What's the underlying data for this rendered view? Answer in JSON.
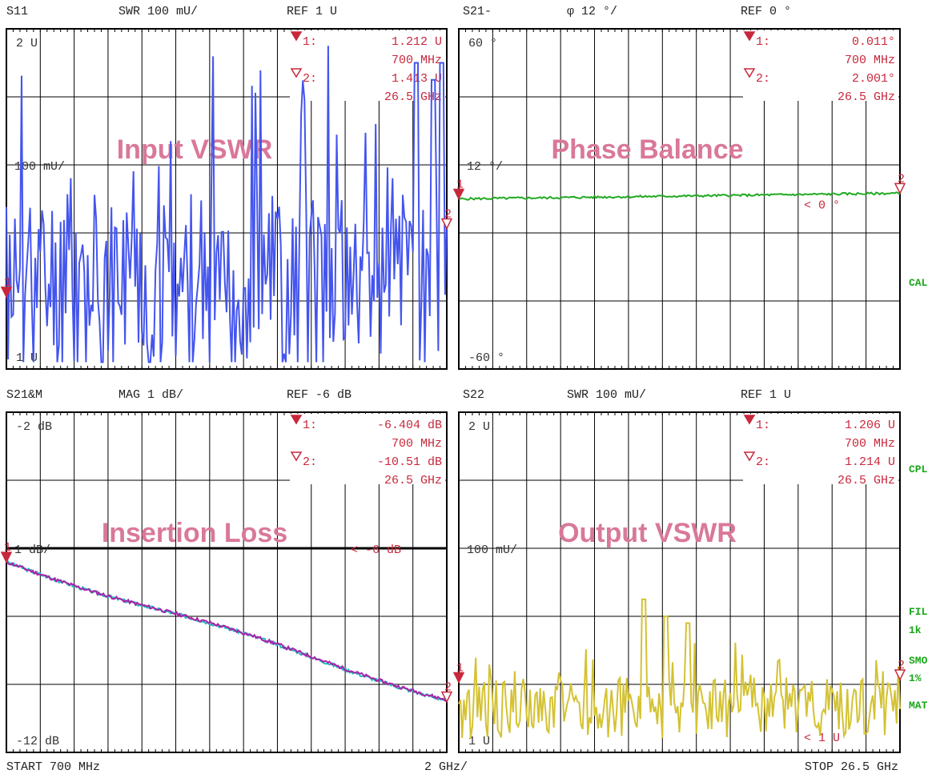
{
  "footer": {
    "start": "START  700 MHz",
    "div": "2 GHz/",
    "stop": "STOP 26.5 GHz"
  },
  "side_labels": [
    "CAL",
    "CPL",
    "FIL",
    "1k",
    "SMO",
    "1%",
    "MAT"
  ],
  "colors": {
    "grid": "#000000",
    "marker": "#c8283c",
    "title": "#d9789a",
    "s11": "#4455ee",
    "phase": "#22aa22",
    "il_a": "#22bbbb",
    "il_b": "#aa22aa",
    "s22": "#d4c232",
    "side": "#19a619"
  },
  "chart_data": [
    {
      "type": "line",
      "header": {
        "param": "S11",
        "format": "SWR 100 mU/",
        "ref": "REF 1 U"
      },
      "title": "Input VSWR",
      "ylabels": {
        "top": "2 U",
        "ref": "100 mU/",
        "bottom": "1 U"
      },
      "ylim": [
        1,
        2
      ],
      "ref": 1.0,
      "x_range_GHz": [
        0.7,
        26.5
      ],
      "markers": [
        {
          "id": "1:",
          "value": "1.212  U",
          "freq": "700 MHz",
          "x": 0.7,
          "y": 1.212
        },
        {
          "id": "2:",
          "value": "1.413  U",
          "freq": "26.5 GHz",
          "x": 26.5,
          "y": 1.413
        }
      ],
      "limit_text": "",
      "series": [
        {
          "color": "#4455ee",
          "seed": 11,
          "base": 1.25,
          "amp": 0.28,
          "trend": 0.0,
          "spikes": [
            [
              0.93,
              1.9
            ],
            [
              0.97,
              1.85
            ],
            [
              0.99,
              1.9
            ]
          ]
        }
      ]
    },
    {
      "type": "line",
      "header": {
        "param": "S21-",
        "format": "φ   12 °/",
        "ref": "REF 0 °"
      },
      "title": "Phase Balance",
      "ylabels": {
        "top": "60 °",
        "ref": "12 °/",
        "bottom": "-60 °"
      },
      "ylim": [
        -60,
        60
      ],
      "ref": 0,
      "x_range_GHz": [
        0.7,
        26.5
      ],
      "markers": [
        {
          "id": "1:",
          "value": "0.011°",
          "freq": "700 MHz",
          "x": 0.7,
          "y": 0.011
        },
        {
          "id": "2:",
          "value": "2.001°",
          "freq": "26.5 GHz",
          "x": 26.5,
          "y": 2.001
        }
      ],
      "limit_text": "< 0 °",
      "series": [
        {
          "color": "#22aa22",
          "seed": 5,
          "base": 0.0,
          "amp": 0.4,
          "trend": 2.0,
          "spikes": []
        }
      ]
    },
    {
      "type": "line",
      "header": {
        "param": "S21&M",
        "format": "MAG 1 dB/",
        "ref": "REF -6 dB"
      },
      "title": "Insertion Loss",
      "ylabels": {
        "top": "-2 dB",
        "ref": "1 dB/",
        "bottom": "-12 dB"
      },
      "ylim": [
        -12,
        -2
      ],
      "ref": -6,
      "x_range_GHz": [
        0.7,
        26.5
      ],
      "markers": [
        {
          "id": "1:",
          "value": "-6.404 dB",
          "freq": "700 MHz",
          "x": 0.7,
          "y": -6.404
        },
        {
          "id": "2:",
          "value": "-10.51 dB",
          "freq": "26.5 GHz",
          "x": 26.5,
          "y": -10.51
        }
      ],
      "limit_text": "< -6 dB",
      "series": [
        {
          "color": "#22bbbb",
          "seed": 3,
          "base": -6.404,
          "amp": 0.05,
          "trend": -4.12,
          "spikes": []
        },
        {
          "color": "#aa22aa",
          "seed": 4,
          "base": -6.404,
          "amp": 0.05,
          "trend": -4.1,
          "spikes": []
        }
      ]
    },
    {
      "type": "line",
      "header": {
        "param": "S22",
        "format": "SWR 100 mU/",
        "ref": "REF 1 U"
      },
      "title": "Output VSWR",
      "ylabels": {
        "top": "2 U",
        "ref": "100 mU/",
        "bottom": "1 U"
      },
      "ylim": [
        1,
        2
      ],
      "ref": 1.0,
      "x_range_GHz": [
        0.7,
        26.5
      ],
      "markers": [
        {
          "id": "1:",
          "value": "1.206  U",
          "freq": "700 MHz",
          "x": 0.7,
          "y": 1.206
        },
        {
          "id": "2:",
          "value": "1.214  U",
          "freq": "26.5 GHz",
          "x": 26.5,
          "y": 1.214
        }
      ],
      "limit_text": "< 1 U",
      "series": [
        {
          "color": "#d4c232",
          "seed": 22,
          "base": 1.13,
          "amp": 0.09,
          "trend": 0.0,
          "spikes": [
            [
              0.42,
              1.45
            ],
            [
              0.47,
              1.4
            ],
            [
              0.52,
              1.38
            ]
          ]
        }
      ]
    }
  ]
}
